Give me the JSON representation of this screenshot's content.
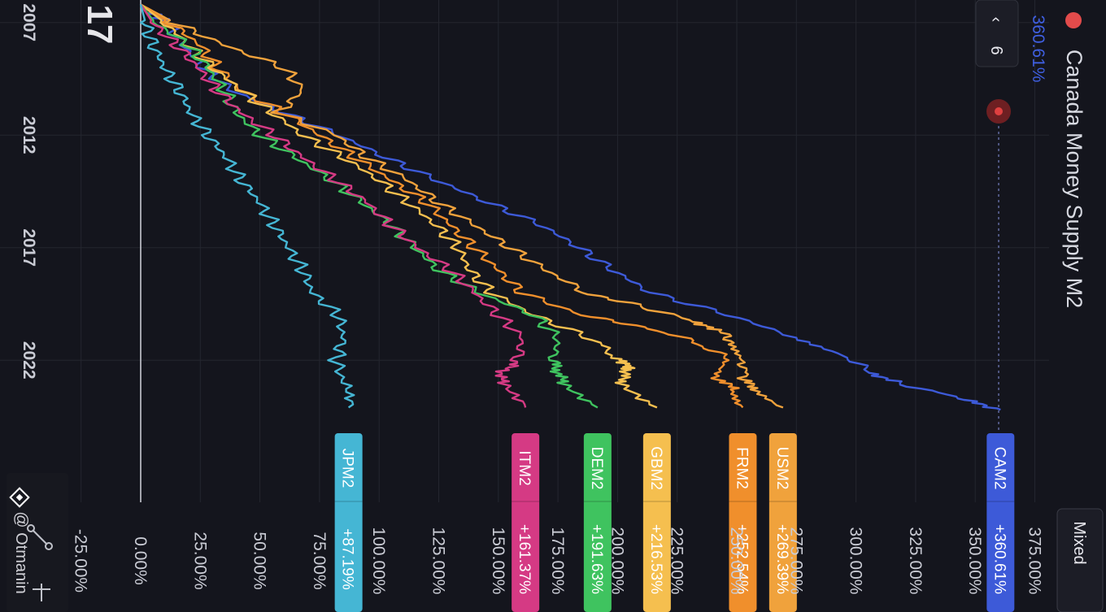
{
  "chart_data": {
    "type": "line",
    "title": "Canada Money Supply M2",
    "subtitle_value": "360.61%",
    "x_axis_years": [
      "2007",
      "2012",
      "2017",
      "2022"
    ],
    "x_range": [
      2006,
      2024.5
    ],
    "y_range": [
      -25,
      375
    ],
    "y_ticks": [
      "-25.00%",
      "0.00%",
      "25.00%",
      "50.00%",
      "75.00%",
      "100.00%",
      "125.00%",
      "150.00%",
      "175.00%",
      "200.00%",
      "225.00%",
      "250.00%",
      "275.00%",
      "300.00%",
      "325.00%",
      "350.00%",
      "375.00%"
    ],
    "y_tick_values": [
      -25,
      0,
      25,
      50,
      75,
      100,
      125,
      150,
      175,
      200,
      225,
      250,
      275,
      300,
      325,
      350,
      375
    ],
    "series": [
      {
        "symbol": "CAM2",
        "label": "+360.61%",
        "color": "#3d5ad8",
        "last": 360.61,
        "points": [
          [
            2006.2,
            0
          ],
          [
            2006.6,
            6
          ],
          [
            2007,
            11
          ],
          [
            2008,
            18
          ],
          [
            2009,
            26
          ],
          [
            2010,
            38
          ],
          [
            2011,
            60
          ],
          [
            2012,
            83
          ],
          [
            2013,
            103
          ],
          [
            2014,
            124
          ],
          [
            2015,
            146
          ],
          [
            2016,
            168
          ],
          [
            2017,
            184
          ],
          [
            2018,
            198
          ],
          [
            2019,
            214
          ],
          [
            2020,
            247
          ],
          [
            2021,
            275
          ],
          [
            2021.8,
            296
          ],
          [
            2022.5,
            305
          ],
          [
            2023,
            318
          ],
          [
            2023.7,
            343
          ],
          [
            2024.2,
            360.61
          ]
        ]
      },
      {
        "symbol": "USM2",
        "label": "+269.39%",
        "color": "#f0a23c",
        "last": 269.39,
        "points": [
          [
            2006.2,
            0
          ],
          [
            2007,
            14
          ],
          [
            2008,
            35
          ],
          [
            2009,
            60
          ],
          [
            2010,
            68
          ],
          [
            2011,
            58
          ],
          [
            2012,
            82
          ],
          [
            2013,
            95
          ],
          [
            2014,
            112
          ],
          [
            2015,
            125
          ],
          [
            2016,
            140
          ],
          [
            2017,
            155
          ],
          [
            2018,
            170
          ],
          [
            2019,
            187
          ],
          [
            2019.6,
            210
          ],
          [
            2020.3,
            232
          ],
          [
            2020.7,
            243
          ],
          [
            2021.3,
            249
          ],
          [
            2022.1,
            254
          ],
          [
            2022.8,
            252
          ],
          [
            2023.3,
            258
          ],
          [
            2024.1,
            269.39
          ]
        ]
      },
      {
        "symbol": "FRM2",
        "label": "+252.54%",
        "color": "#f08f2c",
        "last": 252.54,
        "points": [
          [
            2006.2,
            0
          ],
          [
            2007,
            12
          ],
          [
            2008,
            25
          ],
          [
            2009,
            32
          ],
          [
            2010,
            42
          ],
          [
            2011,
            60
          ],
          [
            2012,
            75
          ],
          [
            2013,
            90
          ],
          [
            2014,
            105
          ],
          [
            2015,
            120
          ],
          [
            2016,
            130
          ],
          [
            2017,
            140
          ],
          [
            2018,
            150
          ],
          [
            2019,
            160
          ],
          [
            2020,
            185
          ],
          [
            2020.6,
            215
          ],
          [
            2021.3,
            235
          ],
          [
            2022,
            247
          ],
          [
            2022.8,
            242
          ],
          [
            2023.3,
            249
          ],
          [
            2024.1,
            252.54
          ]
        ]
      },
      {
        "symbol": "GBM2",
        "label": "+216.53%",
        "color": "#f5bf4f",
        "last": 216.53,
        "points": [
          [
            2006.2,
            0
          ],
          [
            2007,
            10
          ],
          [
            2008,
            20
          ],
          [
            2009,
            30
          ],
          [
            2010,
            42
          ],
          [
            2011,
            55
          ],
          [
            2012,
            68
          ],
          [
            2013,
            85
          ],
          [
            2014,
            100
          ],
          [
            2015,
            112
          ],
          [
            2016,
            124
          ],
          [
            2017,
            133
          ],
          [
            2018,
            138
          ],
          [
            2019,
            147
          ],
          [
            2020,
            165
          ],
          [
            2021,
            188
          ],
          [
            2021.9,
            200
          ],
          [
            2022.3,
            205
          ],
          [
            2022.5,
            203
          ],
          [
            2023,
            202
          ],
          [
            2024.1,
            216.53
          ]
        ]
      },
      {
        "symbol": "DEM2",
        "label": "+191.63%",
        "color": "#3fc35f",
        "last": 191.63,
        "points": [
          [
            2006.2,
            0
          ],
          [
            2007,
            6
          ],
          [
            2008,
            20
          ],
          [
            2009,
            28
          ],
          [
            2010,
            35
          ],
          [
            2011,
            40
          ],
          [
            2012,
            50
          ],
          [
            2013,
            65
          ],
          [
            2014,
            80
          ],
          [
            2015,
            93
          ],
          [
            2016,
            105
          ],
          [
            2017,
            115
          ],
          [
            2018,
            125
          ],
          [
            2019,
            142
          ],
          [
            2020,
            165
          ],
          [
            2021,
            175
          ],
          [
            2022,
            173
          ],
          [
            2022.5,
            175
          ],
          [
            2023,
            177
          ],
          [
            2024.1,
            191.63
          ]
        ]
      },
      {
        "symbol": "ITM2",
        "label": "+161.37%",
        "color": "#d53a84",
        "last": 161.37,
        "points": [
          [
            2006.2,
            0
          ],
          [
            2007,
            5
          ],
          [
            2008,
            15
          ],
          [
            2009,
            24
          ],
          [
            2010,
            32
          ],
          [
            2011,
            42
          ],
          [
            2012,
            56
          ],
          [
            2013,
            68
          ],
          [
            2014,
            82
          ],
          [
            2015,
            95
          ],
          [
            2016,
            105
          ],
          [
            2017,
            116
          ],
          [
            2018,
            130
          ],
          [
            2019,
            140
          ],
          [
            2020,
            150
          ],
          [
            2021,
            160
          ],
          [
            2022,
            158
          ],
          [
            2022.5,
            152
          ],
          [
            2023,
            151
          ],
          [
            2024.1,
            161.37
          ]
        ]
      },
      {
        "symbol": "JPM2",
        "label": "+87.19%",
        "color": "#45b6d4",
        "last": 87.19,
        "points": [
          [
            2006.2,
            0
          ],
          [
            2007,
            2
          ],
          [
            2008,
            5
          ],
          [
            2009,
            10
          ],
          [
            2010,
            16
          ],
          [
            2011,
            21
          ],
          [
            2012,
            28
          ],
          [
            2013,
            36
          ],
          [
            2014,
            42
          ],
          [
            2015,
            50
          ],
          [
            2016,
            56
          ],
          [
            2017,
            62
          ],
          [
            2018,
            68
          ],
          [
            2019,
            72
          ],
          [
            2020,
            83
          ],
          [
            2021,
            85
          ],
          [
            2022,
            82
          ],
          [
            2023,
            85
          ],
          [
            2024.1,
            87.19
          ]
        ]
      }
    ]
  },
  "ui": {
    "scale_mode": "Mixed",
    "nav_count": "6",
    "watermark": "@ Otmanin",
    "logo_text": "17"
  }
}
